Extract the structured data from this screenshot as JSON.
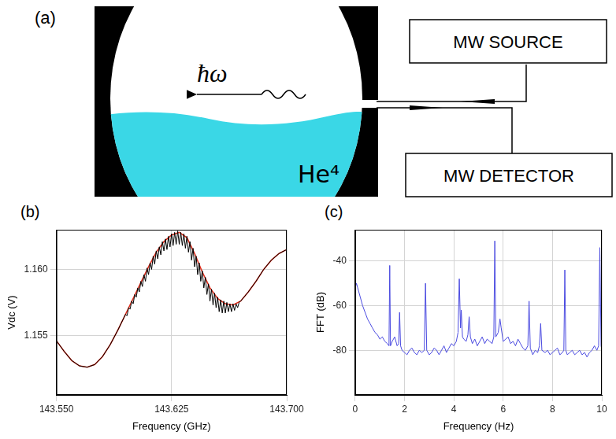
{
  "diagram": {
    "panel": "(a)",
    "photon": "ħω",
    "liquid": "He⁴",
    "boxes": [
      "MW SOURCE",
      "MW DETECTOR"
    ]
  },
  "chart_data": [
    {
      "panel": "(b)",
      "type": "line",
      "x_label": "Frequency (GHz)",
      "y_label": "Vdc (V)",
      "xlim": [
        143.55,
        143.7
      ],
      "xticks": [
        {
          "value": 143.55,
          "label": "143.550"
        },
        143.625,
        {
          "value": 143.7,
          "label": "143.700"
        }
      ],
      "ylim": [
        1.1505,
        1.163
      ],
      "yticks": [
        1.155,
        {
          "value": 1.16,
          "label": "1.160"
        }
      ],
      "grid": true,
      "series": [
        {
          "color": "#000000",
          "x": [
            143.55,
            143.555,
            143.56,
            143.565,
            143.57,
            143.575,
            143.58,
            143.585,
            143.59,
            143.595,
            143.596,
            143.597,
            143.598,
            143.599,
            143.6,
            143.601,
            143.602,
            143.603,
            143.604,
            143.605,
            143.606,
            143.607,
            143.608,
            143.609,
            143.61,
            143.611,
            143.612,
            143.613,
            143.614,
            143.615,
            143.616,
            143.617,
            143.618,
            143.619,
            143.62,
            143.621,
            143.622,
            143.623,
            143.624,
            143.625,
            143.626,
            143.627,
            143.628,
            143.629,
            143.63,
            143.631,
            143.632,
            143.633,
            143.634,
            143.635,
            143.636,
            143.637,
            143.638,
            143.639,
            143.64,
            143.641,
            143.642,
            143.643,
            143.644,
            143.645,
            143.646,
            143.647,
            143.648,
            143.649,
            143.65,
            143.651,
            143.652,
            143.653,
            143.654,
            143.655,
            143.656,
            143.657,
            143.658,
            143.659,
            143.66,
            143.661,
            143.662,
            143.663,
            143.664,
            143.665,
            143.666,
            143.667,
            143.668,
            143.669,
            143.67,
            143.675,
            143.68,
            143.685,
            143.69,
            143.695,
            143.7
          ],
          "values": [
            1.1546,
            1.1538,
            1.1531,
            1.1527,
            1.1526,
            1.1528,
            1.1534,
            1.1543,
            1.1554,
            1.1566,
            1.1565,
            1.1571,
            1.157,
            1.1576,
            1.1574,
            1.1581,
            1.1579,
            1.1586,
            1.1583,
            1.1591,
            1.1587,
            1.1596,
            1.1591,
            1.1601,
            1.1596,
            1.1605,
            1.16,
            1.161,
            1.1604,
            1.1614,
            1.1608,
            1.1617,
            1.1611,
            1.1621,
            1.1614,
            1.1623,
            1.1615,
            1.1625,
            1.1617,
            1.1627,
            1.1618,
            1.1628,
            1.1619,
            1.1629,
            1.1619,
            1.1628,
            1.1618,
            1.1627,
            1.1616,
            1.1625,
            1.1613,
            1.1621,
            1.1607,
            1.1616,
            1.1602,
            1.161,
            1.1596,
            1.1605,
            1.1591,
            1.1599,
            1.1586,
            1.1594,
            1.1581,
            1.1589,
            1.1576,
            1.1585,
            1.1573,
            1.1582,
            1.1571,
            1.1579,
            1.1568,
            1.1577,
            1.1567,
            1.1576,
            1.1567,
            1.1575,
            1.1568,
            1.1574,
            1.1568,
            1.1574,
            1.1569,
            1.1574,
            1.1571,
            1.1575,
            1.1576,
            1.1583,
            1.1591,
            1.16,
            1.1607,
            1.1612,
            1.1615
          ]
        },
        {
          "color": "#e0301e",
          "x": [
            143.55,
            143.555,
            143.56,
            143.565,
            143.57,
            143.575,
            143.58,
            143.585,
            143.59,
            143.595,
            143.6,
            143.605,
            143.61,
            143.615,
            143.62,
            143.625,
            143.63,
            143.635,
            143.64,
            143.645,
            143.65,
            143.655,
            143.66,
            143.665,
            143.67,
            143.675,
            143.68,
            143.685,
            143.69,
            143.695,
            143.7
          ],
          "values": [
            1.1546,
            1.1538,
            1.1531,
            1.1527,
            1.1526,
            1.1528,
            1.1534,
            1.1543,
            1.1554,
            1.1566,
            1.1578,
            1.159,
            1.1602,
            1.1613,
            1.1621,
            1.1626,
            1.1628,
            1.1624,
            1.1612,
            1.1598,
            1.1586,
            1.1578,
            1.1574,
            1.1573,
            1.1576,
            1.1583,
            1.1591,
            1.16,
            1.1607,
            1.1612,
            1.1615
          ]
        }
      ]
    },
    {
      "panel": "(c)",
      "type": "line",
      "x_label": "Frequency (Hz)",
      "y_label": "FFT (dB)",
      "xlim": [
        0,
        10
      ],
      "xticks": [
        0,
        2,
        4,
        6,
        8,
        10
      ],
      "ylim": [
        -100,
        -26
      ],
      "yticks": [
        -80,
        -60,
        -40
      ],
      "grid": true,
      "series": [
        {
          "color": "#4a4ae0",
          "x": [
            0,
            0.05,
            0.1,
            0.2,
            0.3,
            0.4,
            0.5,
            0.6,
            0.7,
            0.8,
            0.9,
            1,
            1.1,
            1.2,
            1.3,
            1.37,
            1.4,
            1.43,
            1.5,
            1.6,
            1.7,
            1.76,
            1.8,
            1.84,
            1.9,
            2,
            2.1,
            2.2,
            2.3,
            2.4,
            2.5,
            2.6,
            2.7,
            2.8,
            2.85,
            2.9,
            3,
            3.1,
            3.2,
            3.3,
            3.4,
            3.5,
            3.6,
            3.7,
            3.8,
            3.9,
            4,
            4.1,
            4.17,
            4.22,
            4.27,
            4.3,
            4.35,
            4.4,
            4.5,
            4.57,
            4.62,
            4.67,
            4.75,
            4.85,
            4.95,
            5.05,
            5.15,
            5.25,
            5.35,
            5.45,
            5.55,
            5.62,
            5.66,
            5.7,
            5.8,
            5.87,
            5.92,
            6,
            6.1,
            6.2,
            6.3,
            6.4,
            6.5,
            6.6,
            6.7,
            6.8,
            6.9,
            7,
            7.05,
            7.1,
            7.2,
            7.3,
            7.4,
            7.47,
            7.52,
            7.57,
            7.7,
            7.8,
            7.9,
            8,
            8.1,
            8.2,
            8.3,
            8.4,
            8.46,
            8.5,
            8.54,
            8.6,
            8.7,
            8.8,
            8.9,
            9,
            9.1,
            9.2,
            9.3,
            9.4,
            9.5,
            9.6,
            9.7,
            9.8,
            9.87,
            9.92,
            9.97,
            10
          ],
          "values": [
            -52,
            -50,
            -52,
            -56,
            -60,
            -63,
            -66,
            -68,
            -70,
            -72,
            -73,
            -75,
            -74,
            -76,
            -77,
            -78,
            -42,
            -78,
            -76,
            -74,
            -78,
            -77,
            -63,
            -78,
            -80,
            -81,
            -82,
            -80,
            -79,
            -81,
            -82,
            -80,
            -81,
            -80,
            -50,
            -80,
            -82,
            -81,
            -79,
            -80,
            -82,
            -80,
            -78,
            -81,
            -79,
            -77,
            -78,
            -76,
            -72,
            -48,
            -70,
            -62,
            -74,
            -75,
            -76,
            -73,
            -65,
            -74,
            -77,
            -75,
            -78,
            -76,
            -74,
            -77,
            -75,
            -76,
            -77,
            -74,
            -31,
            -74,
            -72,
            -66,
            -70,
            -76,
            -75,
            -74,
            -77,
            -76,
            -78,
            -75,
            -77,
            -79,
            -80,
            -78,
            -58,
            -79,
            -82,
            -80,
            -81,
            -78,
            -68,
            -80,
            -81,
            -80,
            -82,
            -81,
            -80,
            -79,
            -82,
            -81,
            -80,
            -44,
            -80,
            -82,
            -81,
            -80,
            -82,
            -81,
            -80,
            -82,
            -81,
            -83,
            -81,
            -80,
            -78,
            -80,
            -78,
            -34,
            -78,
            -80
          ]
        }
      ]
    }
  ]
}
